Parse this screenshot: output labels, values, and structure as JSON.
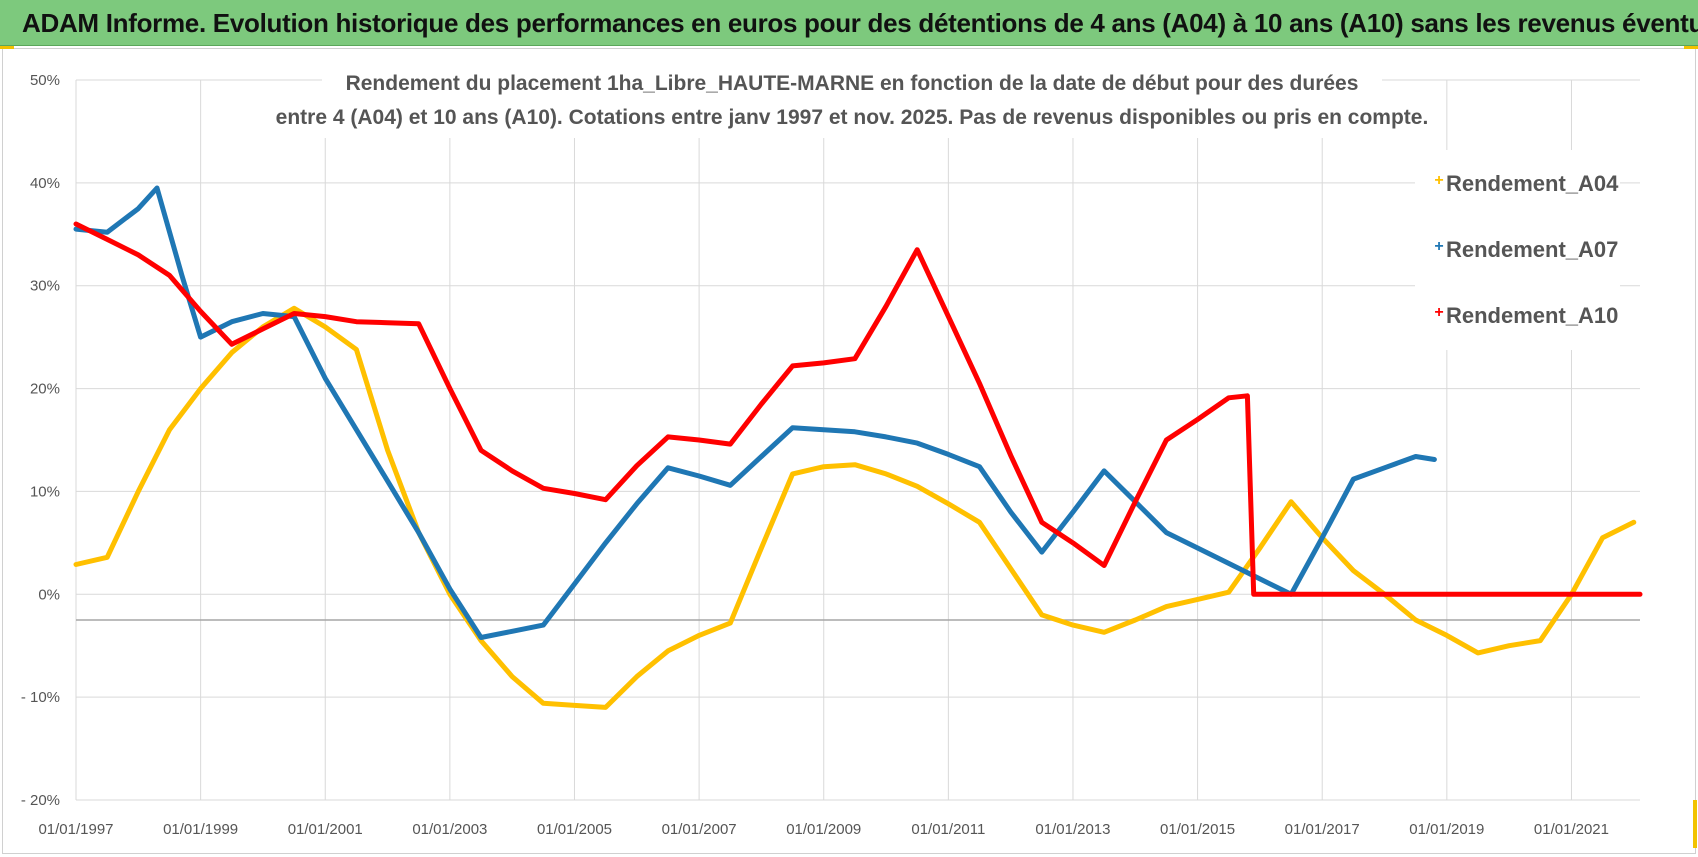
{
  "banner": {
    "title": "ADAM Informe. Evolution historique des performances en euros pour des détentions de 4 ans (A04) à 10 ans (A10) sans les revenus éventuels",
    "background_color": "#7dc97d"
  },
  "chart_data": {
    "type": "line",
    "title_lines": [
      "Rendement du placement 1ha_Libre_HAUTE-MARNE en fonction de la date de début pour des durées",
      "entre 4 (A04) et 10 ans (A10).  Cotations entre janv 1997 et nov. 2025. Pas de revenus disponibles ou pris en compte."
    ],
    "xlabel": "",
    "ylabel": "",
    "xlim": [
      1997.0,
      2022.1
    ],
    "ylim": [
      -20,
      50
    ],
    "y_ticks": [
      50,
      40,
      30,
      20,
      10,
      0,
      -10,
      -20
    ],
    "y_tick_labels": [
      "50%",
      "40%",
      "30%",
      "20%",
      "10%",
      "0%",
      "- 10%",
      "- 20%"
    ],
    "x_ticks": [
      1997,
      1999,
      2001,
      2003,
      2005,
      2007,
      2009,
      2011,
      2013,
      2015,
      2017,
      2019,
      2021
    ],
    "x_tick_labels": [
      "01/01/1997",
      "01/01/1999",
      "01/01/2001",
      "01/01/2003",
      "01/01/2005",
      "01/01/2007",
      "01/01/2009",
      "01/01/2011",
      "01/01/2013",
      "01/01/2015",
      "01/01/2017",
      "01/01/2019",
      "01/01/2021"
    ],
    "reference_line_y": -2.5,
    "grid": true,
    "legend_position": "top-right",
    "series": [
      {
        "name": "Rendement_A04",
        "color": "#ffc000",
        "points": [
          [
            1997.0,
            2.9
          ],
          [
            1997.5,
            3.6
          ],
          [
            1998.0,
            10.0
          ],
          [
            1998.5,
            16.0
          ],
          [
            1999.0,
            20.0
          ],
          [
            1999.5,
            23.5
          ],
          [
            2000.0,
            26.0
          ],
          [
            2000.5,
            27.8
          ],
          [
            2001.0,
            26.0
          ],
          [
            2001.5,
            23.8
          ],
          [
            2002.0,
            14.0
          ],
          [
            2002.5,
            6.0
          ],
          [
            2003.0,
            0.0
          ],
          [
            2003.5,
            -4.5
          ],
          [
            2004.0,
            -8.0
          ],
          [
            2004.5,
            -10.6
          ],
          [
            2005.0,
            -10.8
          ],
          [
            2005.5,
            -11.0
          ],
          [
            2006.0,
            -8.0
          ],
          [
            2006.5,
            -5.5
          ],
          [
            2007.0,
            -4.0
          ],
          [
            2007.5,
            -2.8
          ],
          [
            2008.0,
            4.5
          ],
          [
            2008.5,
            11.7
          ],
          [
            2009.0,
            12.4
          ],
          [
            2009.5,
            12.6
          ],
          [
            2010.0,
            11.7
          ],
          [
            2010.5,
            10.5
          ],
          [
            2011.0,
            8.8
          ],
          [
            2011.5,
            7.0
          ],
          [
            2012.0,
            2.5
          ],
          [
            2012.5,
            -2.0
          ],
          [
            2013.0,
            -3.0
          ],
          [
            2013.5,
            -3.7
          ],
          [
            2014.0,
            -2.5
          ],
          [
            2014.5,
            -1.2
          ],
          [
            2015.0,
            -0.5
          ],
          [
            2015.5,
            0.2
          ],
          [
            2016.0,
            4.5
          ],
          [
            2016.5,
            9.0
          ],
          [
            2017.0,
            5.5
          ],
          [
            2017.5,
            2.3
          ],
          [
            2018.0,
            0.0
          ],
          [
            2018.5,
            -2.5
          ],
          [
            2019.0,
            -4.0
          ],
          [
            2019.5,
            -5.7
          ],
          [
            2020.0,
            -5.0
          ],
          [
            2020.5,
            -4.5
          ],
          [
            2021.0,
            0.0
          ],
          [
            2021.5,
            5.5
          ],
          [
            2022.0,
            7.0
          ]
        ]
      },
      {
        "name": "Rendement_A07",
        "color": "#1f77b4",
        "points": [
          [
            1997.0,
            35.5
          ],
          [
            1997.5,
            35.2
          ],
          [
            1998.0,
            37.5
          ],
          [
            1998.3,
            39.5
          ],
          [
            1998.7,
            31.0
          ],
          [
            1999.0,
            25.0
          ],
          [
            1999.5,
            26.5
          ],
          [
            2000.0,
            27.3
          ],
          [
            2000.5,
            27.0
          ],
          [
            2001.0,
            21.0
          ],
          [
            2001.5,
            16.0
          ],
          [
            2002.0,
            11.0
          ],
          [
            2002.5,
            6.0
          ],
          [
            2003.0,
            0.5
          ],
          [
            2003.5,
            -4.2
          ],
          [
            2004.0,
            -3.6
          ],
          [
            2004.5,
            -3.0
          ],
          [
            2005.0,
            1.0
          ],
          [
            2005.5,
            5.0
          ],
          [
            2006.0,
            8.8
          ],
          [
            2006.5,
            12.3
          ],
          [
            2007.0,
            11.5
          ],
          [
            2007.5,
            10.6
          ],
          [
            2008.0,
            13.4
          ],
          [
            2008.5,
            16.2
          ],
          [
            2009.0,
            16.0
          ],
          [
            2009.5,
            15.8
          ],
          [
            2010.0,
            15.3
          ],
          [
            2010.5,
            14.7
          ],
          [
            2011.0,
            13.6
          ],
          [
            2011.5,
            12.4
          ],
          [
            2012.0,
            8.0
          ],
          [
            2012.5,
            4.1
          ],
          [
            2013.0,
            8.0
          ],
          [
            2013.5,
            12.0
          ],
          [
            2014.0,
            9.0
          ],
          [
            2014.5,
            6.0
          ],
          [
            2015.0,
            4.5
          ],
          [
            2015.5,
            3.0
          ],
          [
            2016.0,
            1.5
          ],
          [
            2016.5,
            0.0
          ],
          [
            2017.0,
            5.5
          ],
          [
            2017.5,
            11.2
          ],
          [
            2018.0,
            12.3
          ],
          [
            2018.5,
            13.4
          ],
          [
            2018.8,
            13.1
          ]
        ]
      },
      {
        "name": "Rendement_A10",
        "color": "#ff0000",
        "points": [
          [
            1997.0,
            36.0
          ],
          [
            1997.5,
            34.5
          ],
          [
            1998.0,
            33.0
          ],
          [
            1998.5,
            31.0
          ],
          [
            1999.0,
            27.5
          ],
          [
            1999.5,
            24.3
          ],
          [
            2000.0,
            25.8
          ],
          [
            2000.5,
            27.3
          ],
          [
            2001.0,
            27.0
          ],
          [
            2001.5,
            26.5
          ],
          [
            2002.0,
            26.4
          ],
          [
            2002.5,
            26.3
          ],
          [
            2003.0,
            20.0
          ],
          [
            2003.5,
            14.0
          ],
          [
            2004.0,
            12.0
          ],
          [
            2004.5,
            10.3
          ],
          [
            2005.0,
            9.8
          ],
          [
            2005.5,
            9.2
          ],
          [
            2006.0,
            12.5
          ],
          [
            2006.5,
            15.3
          ],
          [
            2007.0,
            15.0
          ],
          [
            2007.5,
            14.6
          ],
          [
            2008.0,
            18.5
          ],
          [
            2008.5,
            22.2
          ],
          [
            2009.0,
            22.5
          ],
          [
            2009.5,
            22.9
          ],
          [
            2010.0,
            28.0
          ],
          [
            2010.5,
            33.5
          ],
          [
            2011.0,
            27.0
          ],
          [
            2011.5,
            20.5
          ],
          [
            2012.0,
            13.5
          ],
          [
            2012.5,
            7.0
          ],
          [
            2013.0,
            5.0
          ],
          [
            2013.5,
            2.8
          ],
          [
            2014.0,
            9.0
          ],
          [
            2014.5,
            15.0
          ],
          [
            2015.0,
            17.0
          ],
          [
            2015.5,
            19.1
          ],
          [
            2015.8,
            19.3
          ],
          [
            2015.9,
            0.0
          ],
          [
            2022.1,
            0.0
          ]
        ]
      }
    ]
  }
}
